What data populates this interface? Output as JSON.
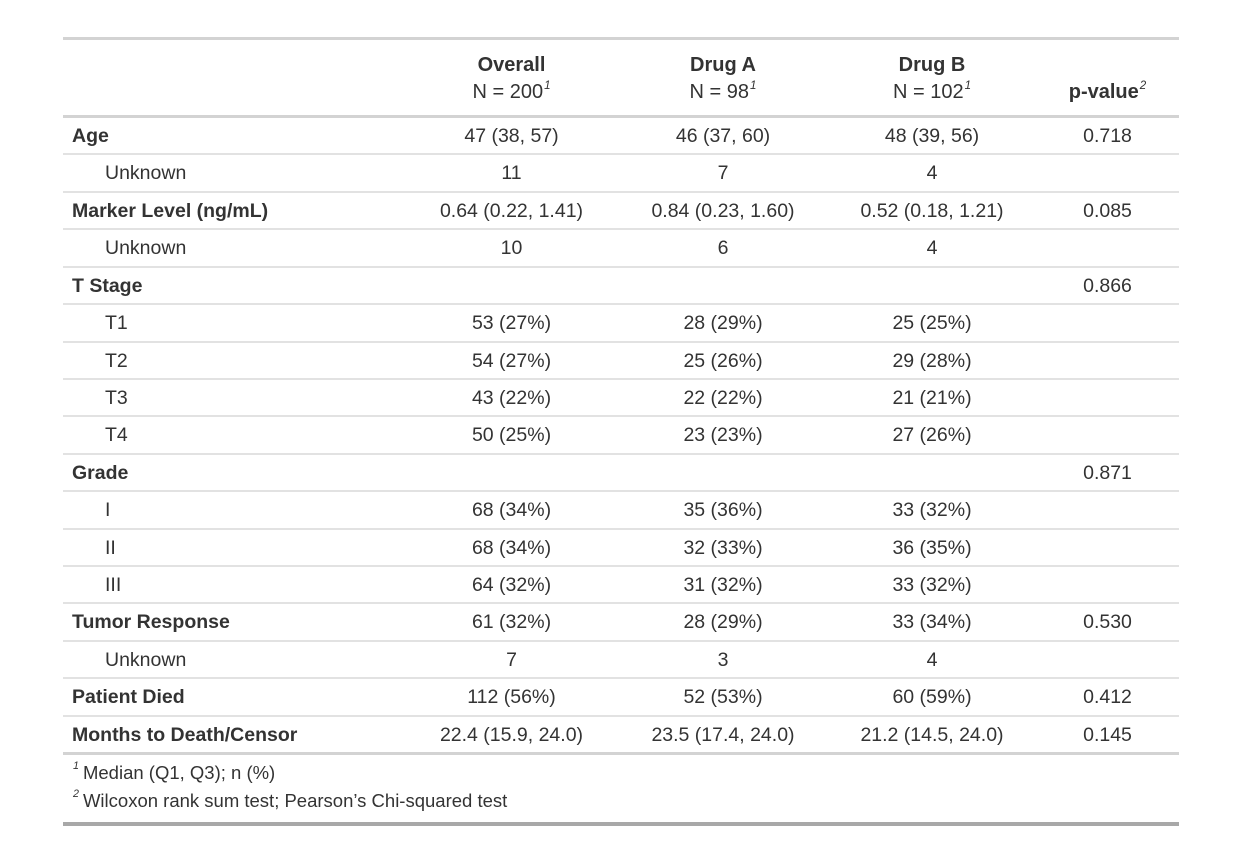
{
  "table": {
    "columns": [
      {
        "label": "",
        "sublabel": "",
        "footnote_mark": ""
      },
      {
        "label": "Overall",
        "sublabel": "N = 200",
        "footnote_mark": "1"
      },
      {
        "label": "Drug A",
        "sublabel": "N = 98",
        "footnote_mark": "1"
      },
      {
        "label": "Drug B",
        "sublabel": "N = 102",
        "footnote_mark": "1"
      },
      {
        "label": "p-value",
        "sublabel": "",
        "footnote_mark": "2"
      }
    ],
    "rows": [
      {
        "label": "Age",
        "bold": true,
        "indent": false,
        "overall": "47 (38, 57)",
        "drug_a": "46 (37, 60)",
        "drug_b": "48 (39, 56)",
        "p_value": "0.718"
      },
      {
        "label": "Unknown",
        "bold": false,
        "indent": true,
        "overall": "11",
        "drug_a": "7",
        "drug_b": "4",
        "p_value": ""
      },
      {
        "label": "Marker Level (ng/mL)",
        "bold": true,
        "indent": false,
        "overall": "0.64 (0.22, 1.41)",
        "drug_a": "0.84 (0.23, 1.60)",
        "drug_b": "0.52 (0.18, 1.21)",
        "p_value": "0.085"
      },
      {
        "label": "Unknown",
        "bold": false,
        "indent": true,
        "overall": "10",
        "drug_a": "6",
        "drug_b": "4",
        "p_value": ""
      },
      {
        "label": "T Stage",
        "bold": true,
        "indent": false,
        "overall": "",
        "drug_a": "",
        "drug_b": "",
        "p_value": "0.866"
      },
      {
        "label": "T1",
        "bold": false,
        "indent": true,
        "overall": "53 (27%)",
        "drug_a": "28 (29%)",
        "drug_b": "25 (25%)",
        "p_value": ""
      },
      {
        "label": "T2",
        "bold": false,
        "indent": true,
        "overall": "54 (27%)",
        "drug_a": "25 (26%)",
        "drug_b": "29 (28%)",
        "p_value": ""
      },
      {
        "label": "T3",
        "bold": false,
        "indent": true,
        "overall": "43 (22%)",
        "drug_a": "22 (22%)",
        "drug_b": "21 (21%)",
        "p_value": ""
      },
      {
        "label": "T4",
        "bold": false,
        "indent": true,
        "overall": "50 (25%)",
        "drug_a": "23 (23%)",
        "drug_b": "27 (26%)",
        "p_value": ""
      },
      {
        "label": "Grade",
        "bold": true,
        "indent": false,
        "overall": "",
        "drug_a": "",
        "drug_b": "",
        "p_value": "0.871"
      },
      {
        "label": "I",
        "bold": false,
        "indent": true,
        "overall": "68 (34%)",
        "drug_a": "35 (36%)",
        "drug_b": "33 (32%)",
        "p_value": ""
      },
      {
        "label": "II",
        "bold": false,
        "indent": true,
        "overall": "68 (34%)",
        "drug_a": "32 (33%)",
        "drug_b": "36 (35%)",
        "p_value": ""
      },
      {
        "label": "III",
        "bold": false,
        "indent": true,
        "overall": "64 (32%)",
        "drug_a": "31 (32%)",
        "drug_b": "33 (32%)",
        "p_value": ""
      },
      {
        "label": "Tumor Response",
        "bold": true,
        "indent": false,
        "overall": "61 (32%)",
        "drug_a": "28 (29%)",
        "drug_b": "33 (34%)",
        "p_value": "0.530"
      },
      {
        "label": "Unknown",
        "bold": false,
        "indent": true,
        "overall": "7",
        "drug_a": "3",
        "drug_b": "4",
        "p_value": ""
      },
      {
        "label": "Patient Died",
        "bold": true,
        "indent": false,
        "overall": "112 (56%)",
        "drug_a": "52 (53%)",
        "drug_b": "60 (59%)",
        "p_value": "0.412"
      },
      {
        "label": "Months to Death/Censor",
        "bold": true,
        "indent": false,
        "overall": "22.4 (15.9, 24.0)",
        "drug_a": "23.5 (17.4, 24.0)",
        "drug_b": "21.2 (14.5, 24.0)",
        "p_value": "0.145"
      }
    ],
    "footnotes": [
      {
        "mark": "1",
        "text": "Median (Q1, Q3); n (%)"
      },
      {
        "mark": "2",
        "text": "Wilcoxon rank sum test; Pearson’s Chi-squared test"
      }
    ]
  }
}
